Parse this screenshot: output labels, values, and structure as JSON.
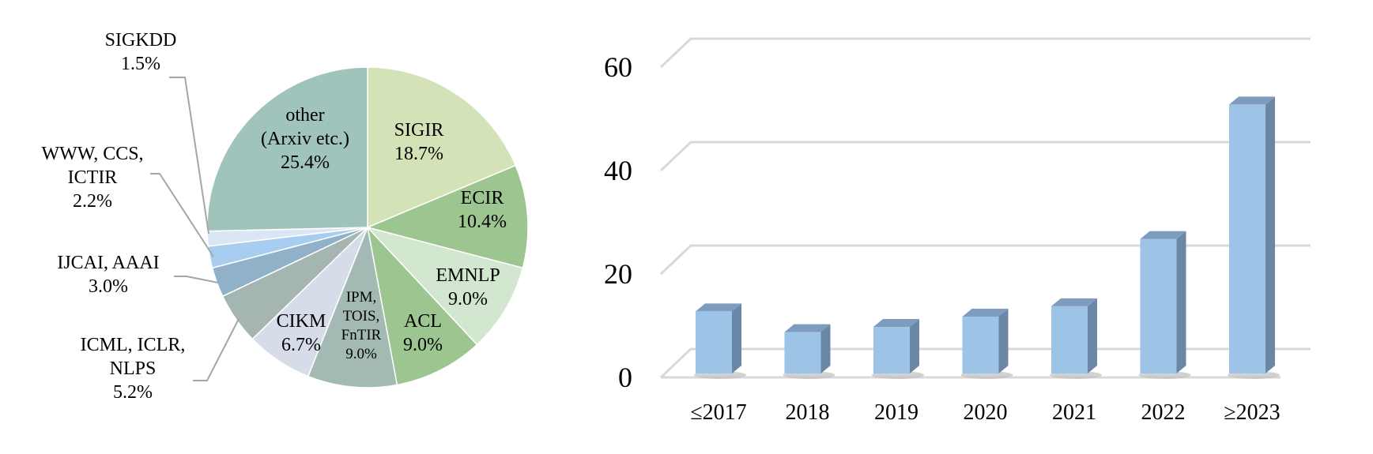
{
  "chart_data": [
    {
      "type": "pie",
      "title": "",
      "slices": [
        {
          "name": "SIGIR",
          "label_lines": [
            "SIGIR",
            "18.7%"
          ],
          "value": 18.7,
          "color": "#d4e3b7"
        },
        {
          "name": "ECIR",
          "label_lines": [
            "ECIR",
            "10.4%"
          ],
          "value": 10.4,
          "color": "#9dc590"
        },
        {
          "name": "EMNLP",
          "label_lines": [
            "EMNLP",
            "9.0%"
          ],
          "value": 9.0,
          "color": "#d3e6cf"
        },
        {
          "name": "ACL",
          "label_lines": [
            "ACL",
            "9.0%"
          ],
          "value": 9.0,
          "color": "#9dc590"
        },
        {
          "name": "IPM, TOIS, FnTIR",
          "label_lines": [
            "IPM,",
            "TOIS,",
            "FnTIR",
            "9.0%"
          ],
          "value": 9.0,
          "color": "#a3b9b3"
        },
        {
          "name": "CIKM",
          "label_lines": [
            "CIKM",
            "6.7%"
          ],
          "value": 6.7,
          "color": "#d6dce8"
        },
        {
          "name": "ICML, ICLR, NLPS",
          "label_lines": [
            "ICML, ICLR,",
            "NLPS",
            "5.2%"
          ],
          "value": 5.2,
          "color": "#a5b5b1"
        },
        {
          "name": "IJCAI, AAAI",
          "label_lines": [
            "IJCAI, AAAI",
            "3.0%"
          ],
          "value": 3.0,
          "color": "#91b1c9"
        },
        {
          "name": "WWW, CCS, ICTIR",
          "label_lines": [
            "WWW, CCS,",
            "ICTIR",
            "2.2%"
          ],
          "value": 2.2,
          "color": "#a7cdf0"
        },
        {
          "name": "SIGKDD",
          "label_lines": [
            "SIGKDD",
            "1.5%"
          ],
          "value": 1.5,
          "color": "#dbe6f4"
        },
        {
          "name": "other (Arxiv etc.)",
          "label_lines": [
            "other",
            "(Arxiv etc.)",
            "25.4%"
          ],
          "value": 25.4,
          "color": "#a0c4bc"
        }
      ]
    },
    {
      "type": "bar",
      "title": "",
      "xlabel": "",
      "ylabel": "",
      "categories": [
        "≤2017",
        "2018",
        "2019",
        "2020",
        "2021",
        "2022",
        "≥2023"
      ],
      "values": [
        12,
        8,
        9,
        11,
        13,
        26,
        52
      ],
      "ylim": [
        0,
        60
      ],
      "yticks": [
        "0",
        "20",
        "40",
        "60"
      ],
      "grid": true,
      "colors": {
        "front": "#9dc3e6",
        "side": "#6b87a6",
        "top": "#7e9cbd",
        "grid": "#d9d9d9"
      }
    }
  ]
}
